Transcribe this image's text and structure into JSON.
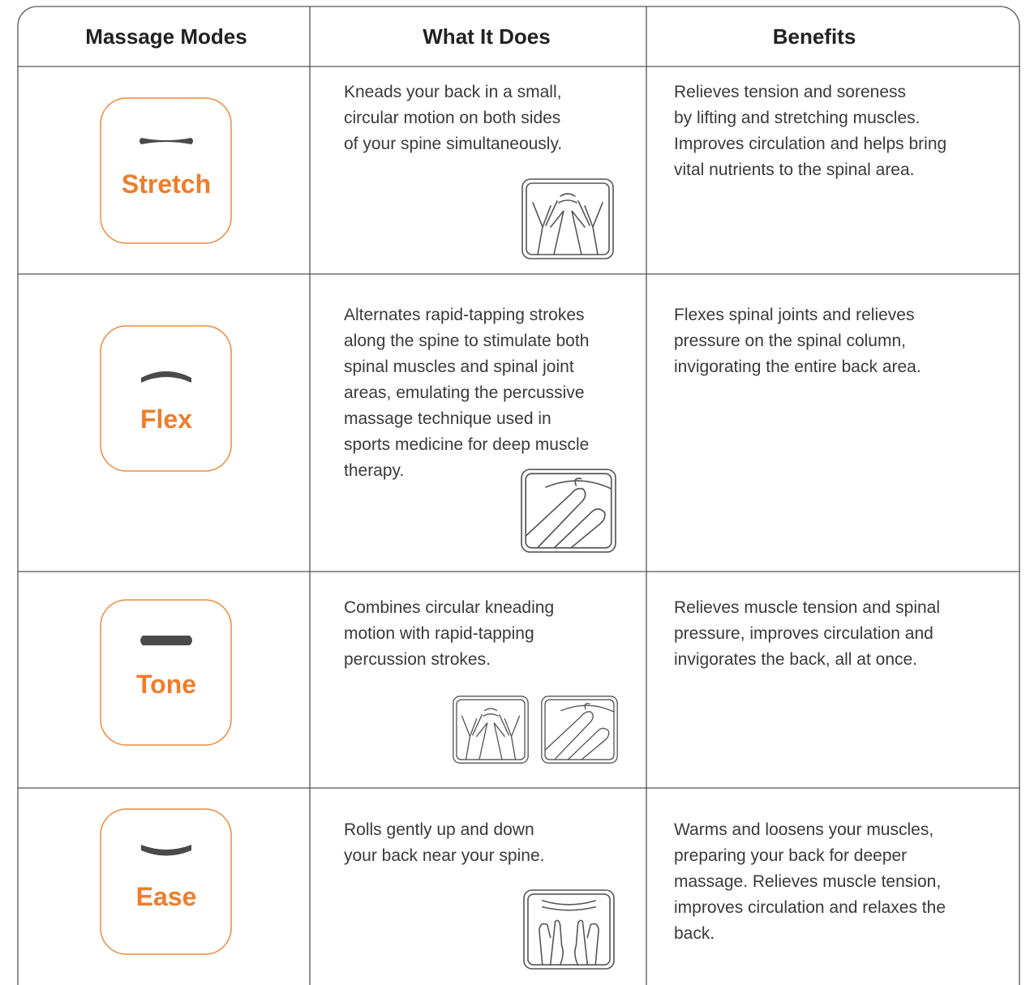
{
  "table": {
    "headers": [
      "Massage Modes",
      "What It Does",
      "Benefits"
    ],
    "rows": [
      {
        "mode": "Stretch",
        "does": [
          "Kneads your back in a small,",
          "circular motion on both sides",
          "of your spine simultaneously."
        ],
        "benefits": [
          "Relieves tension and soreness",
          "by lifting and stretching muscles.",
          "Improves circulation and helps bring",
          "vital nutrients to the spinal area."
        ]
      },
      {
        "mode": "Flex",
        "does": [
          "Alternates rapid-tapping strokes",
          "along the spine to stimulate both",
          "spinal muscles and spinal joint",
          "areas, emulating the percussive",
          "massage technique used in",
          "sports medicine for deep muscle",
          "therapy."
        ],
        "benefits": [
          "Flexes spinal joints and relieves",
          "pressure on the spinal column,",
          "invigorating the entire back area."
        ]
      },
      {
        "mode": "Tone",
        "does": [
          "Combines circular kneading",
          "motion with rapid-tapping",
          "percussion strokes."
        ],
        "benefits": [
          "Relieves muscle tension and spinal",
          "pressure, improves circulation and",
          "invigorates the back, all at once."
        ]
      },
      {
        "mode": "Ease",
        "does": [
          "Rolls gently up and down",
          "your back near your spine."
        ],
        "benefits": [
          "Warms and loosens your muscles,",
          "preparing your back for deeper",
          "massage. Relieves muscle tension,",
          "improves circulation and relaxes the",
          "back."
        ]
      }
    ]
  }
}
